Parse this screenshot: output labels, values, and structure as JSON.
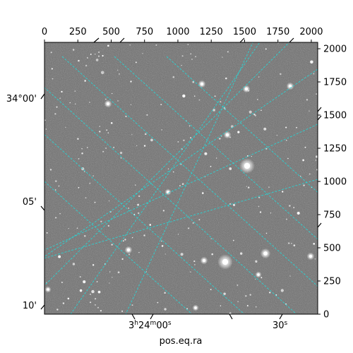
{
  "image": {
    "description_type": "astronomical-sky-image",
    "colormap": "grayscale",
    "grid_color": "#2ad4d4",
    "grid_style": "dashed",
    "overlay_ra_labels": [
      {
        "h": "3",
        "m": "24",
        "s": "00"
      },
      {
        "text": "30",
        "sup": "s"
      }
    ],
    "overlay_dec_labels": [
      "34°00'",
      "05'",
      "10'"
    ]
  },
  "chart_data": {
    "type": "image",
    "x_pixel_ticks": [
      "0",
      "250",
      "500",
      "750",
      "1000",
      "1250",
      "1500",
      "1750",
      "2000"
    ],
    "y_pixel_ticks": [
      "0",
      "250",
      "500",
      "750",
      "1000",
      "1250",
      "1500",
      "1750",
      "2000"
    ],
    "xlim": [
      0,
      2048
    ],
    "ylim": [
      0,
      2048
    ],
    "xlabel": "pos.eq.ra",
    "ylabel": ""
  }
}
